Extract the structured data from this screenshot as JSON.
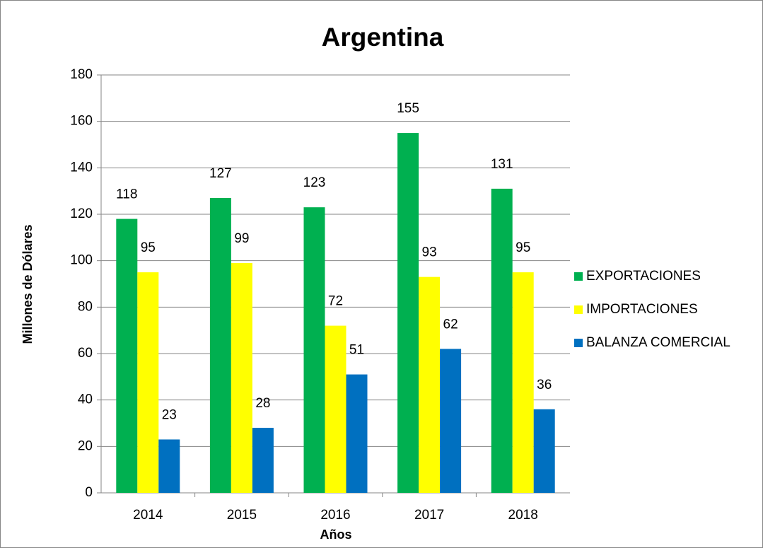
{
  "chart_data": {
    "type": "bar",
    "title": "Argentina",
    "x_label": "Años",
    "y_label": "Millones de Dólares",
    "categories": [
      "2014",
      "2015",
      "2016",
      "2017",
      "2018"
    ],
    "series": [
      {
        "name": "EXPORTACIONES",
        "color": "#00b050",
        "values": [
          118,
          127,
          123,
          155,
          131
        ]
      },
      {
        "name": "IMPORTACIONES",
        "color": "#ffff00",
        "values": [
          95,
          99,
          72,
          93,
          95
        ]
      },
      {
        "name": "BALANZA COMERCIAL",
        "color": "#0070c0",
        "values": [
          23,
          28,
          51,
          62,
          36
        ]
      }
    ],
    "ylim": [
      0,
      180
    ],
    "yticks": [
      0,
      20,
      40,
      60,
      80,
      100,
      120,
      140,
      160,
      180
    ],
    "grid": true,
    "legend": "right"
  }
}
